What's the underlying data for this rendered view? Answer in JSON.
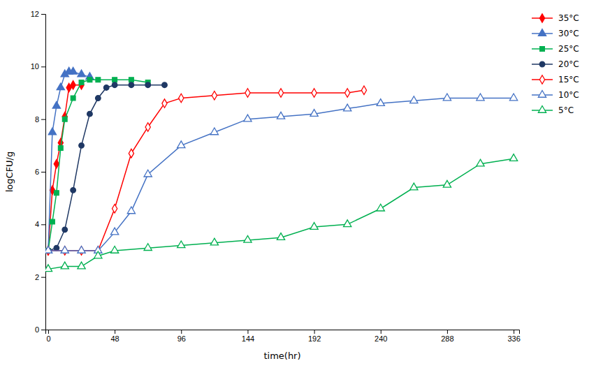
{
  "chart_data": {
    "type": "line",
    "xlabel": "time(hr)",
    "ylabel": "logCFU/g",
    "xlim": [
      -2,
      340
    ],
    "ylim": [
      0,
      12
    ],
    "xticks": [
      0,
      48,
      96,
      144,
      192,
      240,
      288,
      336
    ],
    "yticks": [
      0,
      2,
      4,
      6,
      8,
      10,
      12
    ],
    "grid": false,
    "legend": "right",
    "series": [
      {
        "name": "35°C",
        "color": "#FF0000",
        "marker": "diamond",
        "x": [
          0,
          3,
          6,
          9,
          12,
          15,
          18,
          24
        ],
        "values": [
          3.0,
          5.3,
          6.3,
          7.1,
          8.1,
          9.2,
          9.3,
          9.3
        ]
      },
      {
        "name": "30°C",
        "color": "#4472C4",
        "marker": "triangle",
        "x": [
          0,
          3,
          6,
          9,
          12,
          15,
          18,
          24,
          30
        ],
        "values": [
          3.0,
          7.5,
          8.5,
          9.2,
          9.7,
          9.8,
          9.8,
          9.7,
          9.6
        ]
      },
      {
        "name": "25°C",
        "color": "#00B050",
        "marker": "square",
        "x": [
          0,
          3,
          6,
          9,
          12,
          18,
          24,
          30,
          36,
          48,
          60,
          72
        ],
        "values": [
          3.0,
          4.1,
          5.2,
          6.9,
          8.0,
          8.8,
          9.4,
          9.5,
          9.5,
          9.5,
          9.5,
          9.4
        ]
      },
      {
        "name": "20°C",
        "color": "#1F3864",
        "marker": "circle",
        "x": [
          0,
          6,
          12,
          18,
          24,
          30,
          36,
          42,
          48,
          60,
          72,
          84
        ],
        "values": [
          3.0,
          3.1,
          3.8,
          5.3,
          7.0,
          8.2,
          8.8,
          9.2,
          9.3,
          9.3,
          9.3,
          9.3
        ]
      },
      {
        "name": "15°C",
        "color": "#FF0000",
        "marker": "diamond-open",
        "x": [
          0,
          12,
          24,
          36,
          48,
          60,
          72,
          84,
          96,
          120,
          144,
          168,
          192,
          216,
          228
        ],
        "values": [
          3.0,
          3.0,
          3.0,
          3.0,
          4.6,
          6.7,
          7.7,
          8.6,
          8.8,
          8.9,
          9.0,
          9.0,
          9.0,
          9.0,
          9.1
        ]
      },
      {
        "name": "10°C",
        "color": "#4472C4",
        "marker": "triangle-open",
        "x": [
          0,
          12,
          24,
          36,
          48,
          60,
          72,
          96,
          120,
          144,
          168,
          192,
          216,
          240,
          264,
          288,
          312,
          336
        ],
        "values": [
          3.0,
          3.0,
          3.0,
          3.0,
          3.7,
          4.5,
          5.9,
          7.0,
          7.5,
          8.0,
          8.1,
          8.2,
          8.4,
          8.6,
          8.7,
          8.8,
          8.8,
          8.8
        ]
      },
      {
        "name": "5°C",
        "color": "#00B050",
        "marker": "triangle-open",
        "x": [
          0,
          12,
          24,
          36,
          48,
          72,
          96,
          120,
          144,
          168,
          192,
          216,
          240,
          264,
          288,
          312,
          336
        ],
        "values": [
          2.3,
          2.4,
          2.4,
          2.8,
          3.0,
          3.1,
          3.2,
          3.3,
          3.4,
          3.5,
          3.9,
          4.0,
          4.6,
          5.4,
          5.5,
          6.3,
          6.5
        ]
      }
    ]
  }
}
